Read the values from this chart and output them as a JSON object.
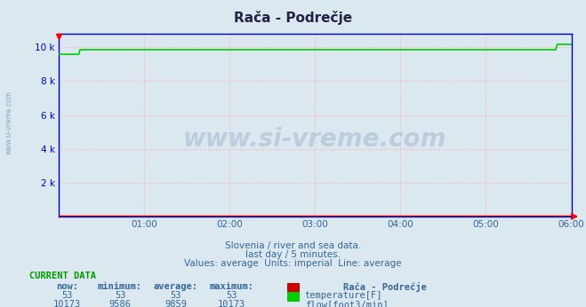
{
  "title": "Rača - Podrečje",
  "bg_color": "#dce8f0",
  "plot_bg_color": "#ffffff",
  "plot_inner_bg": "#dce8f0",
  "grid_color": "#ffaaaa",
  "grid_style": ":",
  "x_end": 432,
  "x_ticks": [
    72,
    144,
    216,
    288,
    360,
    432
  ],
  "x_tick_labels": [
    "01:00",
    "02:00",
    "03:00",
    "04:00",
    "05:00",
    "06:00"
  ],
  "y_min": 0,
  "y_max": 10800,
  "y_ticks": [
    2000,
    4000,
    6000,
    8000,
    10000
  ],
  "y_tick_labels": [
    "2 k",
    "4 k",
    "6 k",
    "8 k",
    "10 k"
  ],
  "temperature_color": "#cc0000",
  "flow_color": "#00cc00",
  "temperature_value": 53,
  "flow_min": 9586,
  "flow_avg": 9859,
  "flow_max": 10173,
  "subtitle1": "Slovenia / river and sea data.",
  "subtitle2": "last day / 5 minutes.",
  "subtitle3": "Values: average  Units: imperial  Line: average",
  "current_data_title": "CURRENT DATA",
  "col_now": "now:",
  "col_min": "minimum:",
  "col_avg": "average:",
  "col_max": "maximum:",
  "station_name": "Rača - Podrečje",
  "temp_now": 53,
  "temp_min": 53,
  "temp_avg": 53,
  "temp_max": 53,
  "flow_now": 10173,
  "flow_min_val": 9586,
  "flow_avg_val": 9859,
  "flow_max_val": 10173,
  "temp_label": "temperature[F]",
  "flow_label": "flow[foot3/min]",
  "watermark": "www.si-vreme.com",
  "side_text": "www.si-vreme.com",
  "axis_color": "#0000cc",
  "border_color": "#0000cc",
  "text_color": "#336699",
  "title_color": "#222244"
}
